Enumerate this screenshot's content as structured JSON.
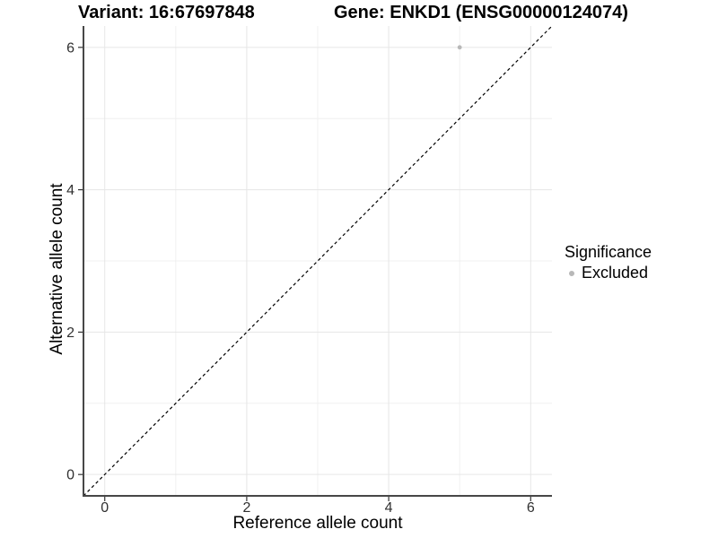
{
  "header": {
    "variant_title": "Variant: 16:67697848",
    "gene_title": "Gene: ENKD1 (ENSG00000124074)"
  },
  "chart_data": {
    "type": "scatter",
    "title": "Variant: 16:67697848  /  Gene: ENKD1 (ENSG00000124074)",
    "xlabel": "Reference allele count",
    "ylabel": "Alternative allele count",
    "xlim": [
      -0.3,
      6.3
    ],
    "ylim": [
      -0.3,
      6.3
    ],
    "x_ticks": [
      0,
      2,
      4,
      6
    ],
    "y_ticks": [
      0,
      2,
      4,
      6
    ],
    "x_minor_ticks": [
      1,
      3,
      5
    ],
    "y_minor_ticks": [
      1,
      3,
      5
    ],
    "grid": true,
    "legend_position": "right",
    "series": [
      {
        "name": "Excluded",
        "points": [
          {
            "x": 5,
            "y": 6
          }
        ],
        "color": "#b8b8b8"
      }
    ],
    "identity_line": {
      "style": "dashed",
      "from": [
        -0.3,
        -0.3
      ],
      "to": [
        6.3,
        6.3
      ],
      "color": "#000000"
    },
    "legend": {
      "title": "Significance",
      "items": [
        {
          "label": "Excluded",
          "color": "#b8b8b8"
        }
      ]
    },
    "colors": {
      "axis_line": "#474747",
      "tick_mark": "#333333",
      "tick_label": "#303030",
      "grid_major": "#e6e6e6",
      "grid_minor": "#f0f0f0",
      "background": "#ffffff"
    }
  }
}
